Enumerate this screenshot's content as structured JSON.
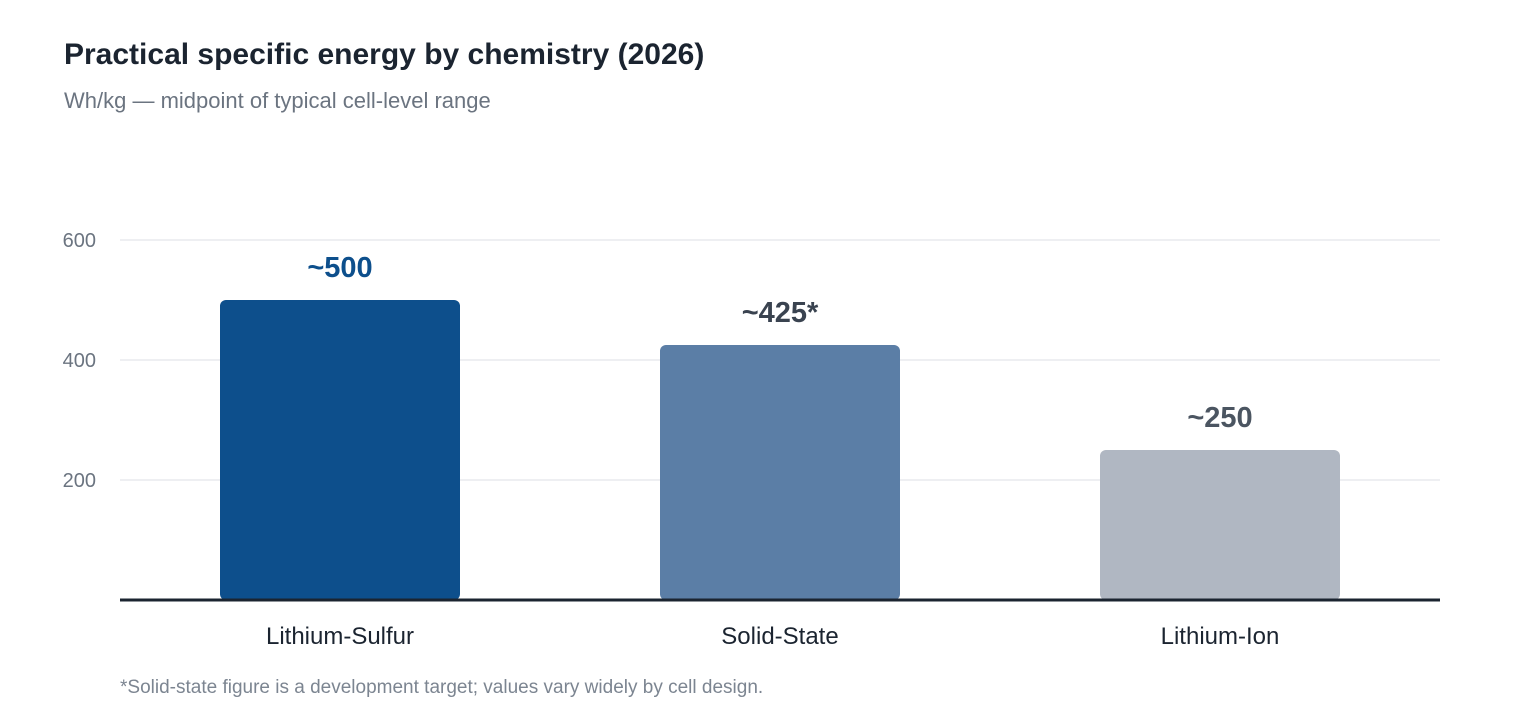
{
  "title": "Practical specific energy by chemistry (2026)",
  "subtitle": "Wh/kg — midpoint of typical cell-level range",
  "footnote": "*Solid-state figure is a development target; values vary widely by cell design.",
  "chart_data": {
    "type": "bar",
    "title": "Practical specific energy by chemistry (2026)",
    "subtitle": "Wh/kg — midpoint of typical cell-level range",
    "categories": [
      "Lithium-Sulfur",
      "Solid-State",
      "Lithium-Ion"
    ],
    "values": [
      500,
      425,
      250
    ],
    "data_labels": [
      "~500",
      "~425*",
      "~250"
    ],
    "bar_colors": [
      "#0d4f8c",
      "#5b7ea6",
      "#b0b7c2"
    ],
    "label_colors": [
      "#0d4f8c",
      "#3a4350",
      "#4b5561"
    ],
    "ylim": [
      0,
      600
    ],
    "yticks": [
      200,
      400,
      600
    ],
    "grid": true,
    "legend": "none"
  }
}
